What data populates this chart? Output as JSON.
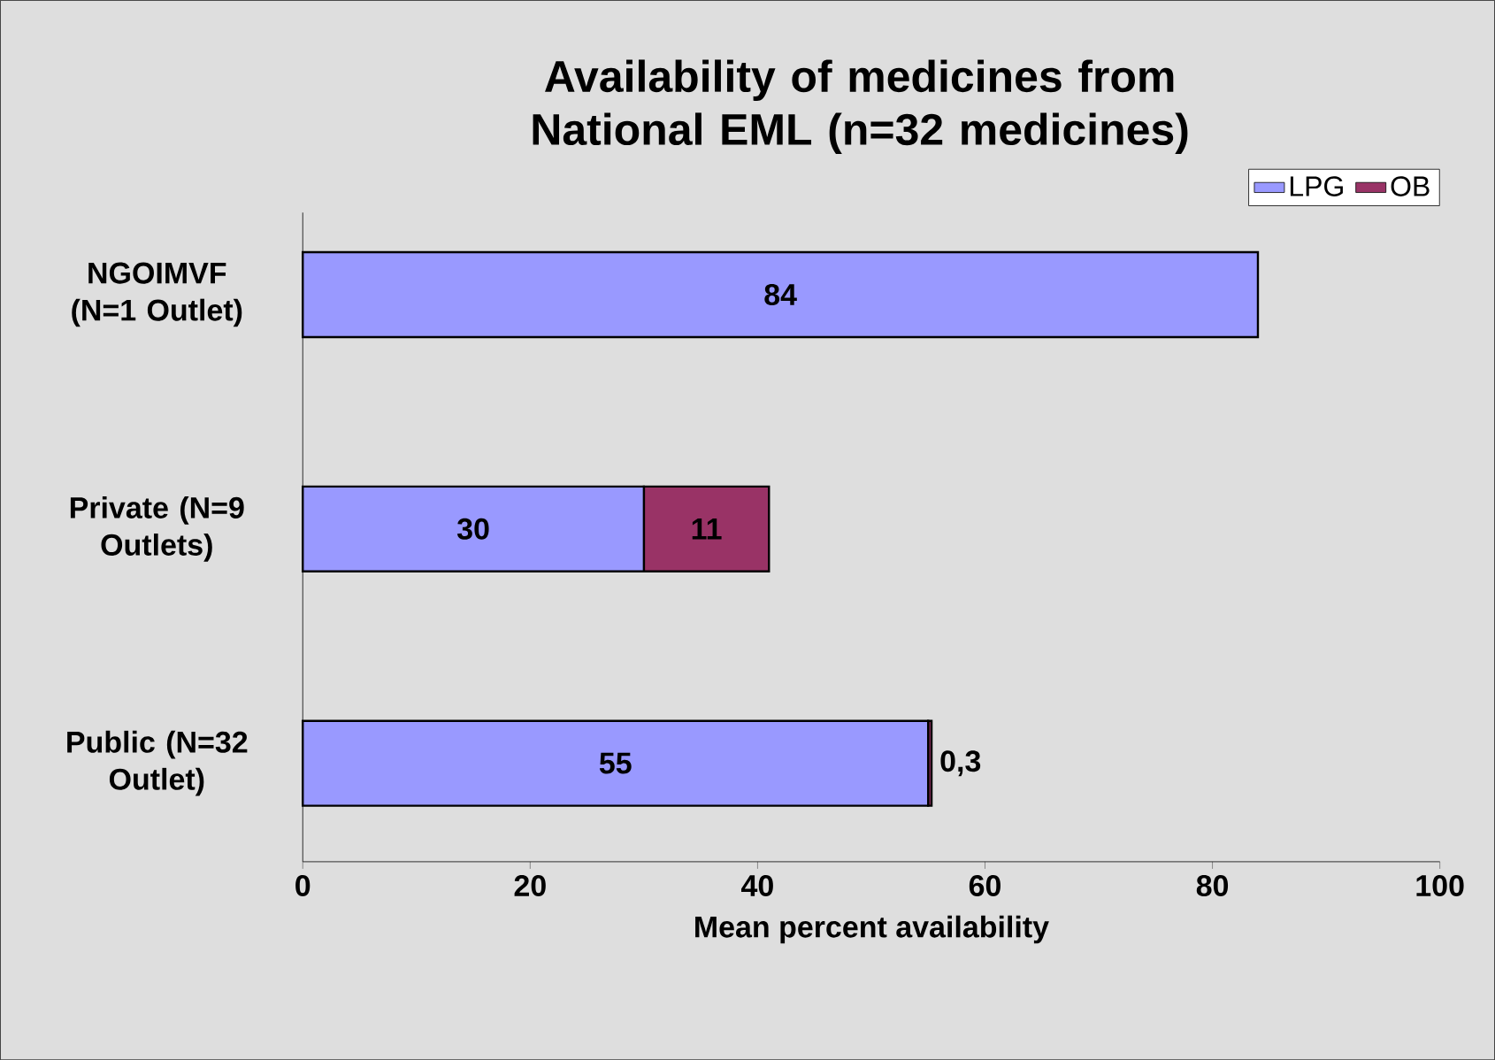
{
  "chart_data": {
    "type": "bar",
    "orientation": "horizontal",
    "stacked": true,
    "title": "Availability of medicines from National EML (n=32 medicines)",
    "xlabel": "Mean percent availability",
    "categories": [
      "NGOIMVF (N=1 Outlet)",
      "Private (N=9 Outlets)",
      "Public (N=32 Outlet)"
    ],
    "series": [
      {
        "name": "LPG",
        "color": "#9999ff",
        "values": [
          84,
          30,
          55
        ],
        "value_labels": [
          "84",
          "30",
          "55"
        ]
      },
      {
        "name": "OB",
        "color": "#993366",
        "values": [
          null,
          11,
          0.3
        ],
        "value_labels": [
          null,
          "11",
          "0,3"
        ]
      }
    ],
    "xlim": [
      0,
      100
    ],
    "xticks": [
      0,
      20,
      40,
      60,
      80,
      100
    ],
    "grid": false,
    "legend": "top right"
  }
}
